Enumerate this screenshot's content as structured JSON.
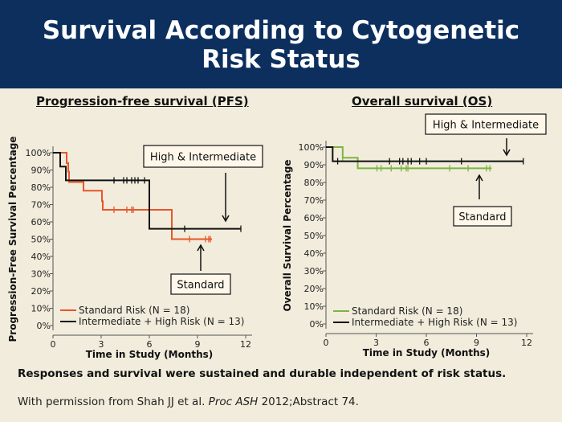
{
  "header": {
    "line1": "Survival According to Cytogenetic",
    "line2": "Risk Status"
  },
  "footer": "Responses and survival were sustained and durable independent of risk status.",
  "citation": {
    "pre": "With permission from Shah JJ et al. ",
    "journal": "Proc ASH",
    "post": " 2012;Abstract 74."
  },
  "colors": {
    "standard_pfs": "#e8562a",
    "standard_os": "#7db441",
    "high": "#111111"
  },
  "chart_data": [
    {
      "type": "line",
      "title": "Progression-free survival (PFS)",
      "xlabel": "Time in Study (Months)",
      "ylabel": "Progression-Free Survival Percentage",
      "xlim": [
        0,
        12
      ],
      "ylim": [
        0,
        100
      ],
      "xticks": [
        0,
        3,
        6,
        9,
        12
      ],
      "yticks": [
        0,
        10,
        20,
        30,
        40,
        50,
        60,
        70,
        80,
        90,
        100
      ],
      "annotations": [
        "High & Intermediate",
        "Standard"
      ],
      "series": [
        {
          "name": "Standard Risk (N = 18)",
          "color": "#e8562a",
          "steps": [
            [
              0,
              100
            ],
            [
              0.85,
              94
            ],
            [
              0.95,
              89
            ],
            [
              1.0,
              83
            ],
            [
              1.9,
              78
            ],
            [
              3.05,
              72
            ],
            [
              3.1,
              67
            ],
            [
              7.4,
              50
            ]
          ],
          "end": 9.9,
          "censored": [
            3.8,
            4.6,
            4.9,
            5.0,
            8.5,
            9.5,
            9.7,
            9.8
          ]
        },
        {
          "name": "Intermediate + High Risk (N = 13)",
          "color": "#111111",
          "steps": [
            [
              0,
              100
            ],
            [
              0.45,
              92
            ],
            [
              0.8,
              84
            ],
            [
              6.0,
              56
            ]
          ],
          "end": 11.7,
          "censored": [
            3.8,
            4.4,
            4.6,
            4.9,
            5.1,
            5.3,
            5.7,
            8.2,
            11.7
          ]
        }
      ]
    },
    {
      "type": "line",
      "title": "Overall survival (OS)",
      "xlabel": "Time in Study (Months)",
      "ylabel": "Overall Survival Percentage",
      "xlim": [
        0,
        12
      ],
      "ylim": [
        0,
        100
      ],
      "xticks": [
        0,
        3,
        6,
        9,
        12
      ],
      "yticks": [
        0,
        10,
        20,
        30,
        40,
        50,
        60,
        70,
        80,
        90,
        100
      ],
      "annotations": [
        "High & Intermediate",
        "Standard"
      ],
      "series": [
        {
          "name": "Standard Risk (N = 18)",
          "color": "#7db441",
          "steps": [
            [
              0,
              100
            ],
            [
              1.0,
              94
            ],
            [
              1.9,
              88
            ]
          ],
          "end": 9.9,
          "censored": [
            1.0,
            3.05,
            3.3,
            3.9,
            4.5,
            4.8,
            4.9,
            7.4,
            8.5,
            9.6,
            9.8
          ]
        },
        {
          "name": "Intermediate + High Risk (N = 13)",
          "color": "#111111",
          "steps": [
            [
              0,
              100
            ],
            [
              0.4,
              92
            ]
          ],
          "end": 11.8,
          "censored": [
            0.7,
            3.8,
            4.4,
            4.6,
            4.9,
            5.1,
            5.6,
            6.0,
            8.1,
            11.8
          ]
        }
      ]
    }
  ]
}
